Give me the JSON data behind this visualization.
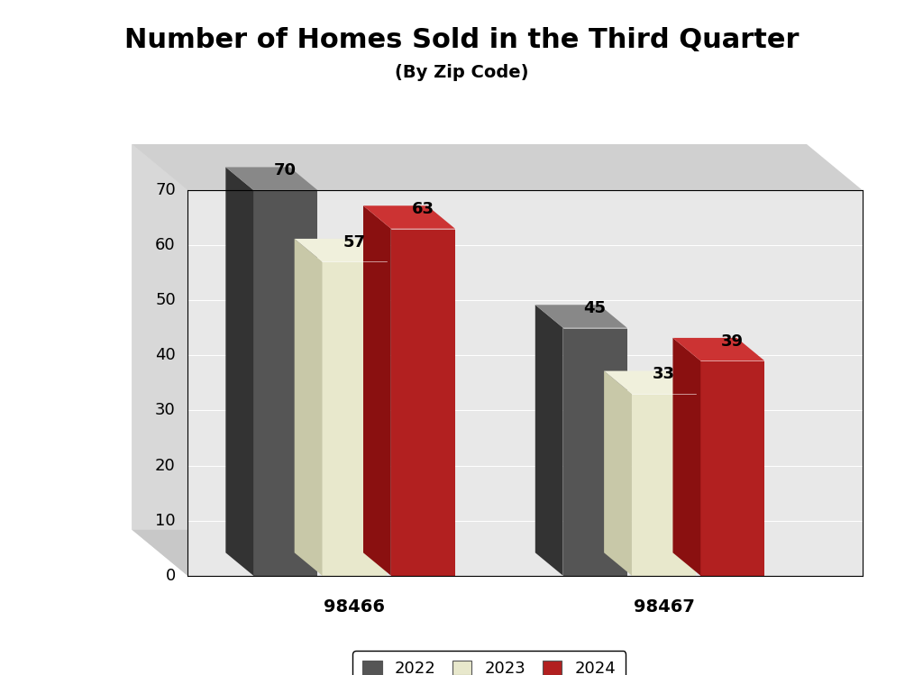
{
  "title": "Number of Homes Sold in the Third Quarter",
  "subtitle": "(By Zip Code)",
  "categories": [
    "98466",
    "98467"
  ],
  "years": [
    "2022",
    "2023",
    "2024"
  ],
  "values": {
    "98466": [
      70,
      57,
      63
    ],
    "98467": [
      45,
      33,
      39
    ]
  },
  "bar_front_colors": [
    "#555555",
    "#e8e8cc",
    "#b22020"
  ],
  "bar_side_colors": [
    "#333333",
    "#c8c8a8",
    "#8a1010"
  ],
  "bar_top_colors": [
    "#888888",
    "#f0f0dc",
    "#cc3333"
  ],
  "ylim": [
    0,
    70
  ],
  "yticks": [
    0,
    10,
    20,
    30,
    40,
    50,
    60,
    70
  ],
  "wall_color": "#d8d8d8",
  "floor_color": "#c8c8c8",
  "back_wall_color": "#e0e0e0",
  "plot_bg_color": "#e8e8e8",
  "title_fontsize": 22,
  "subtitle_fontsize": 14,
  "tick_fontsize": 13,
  "label_fontsize": 14,
  "legend_fontsize": 13,
  "value_fontsize": 13
}
